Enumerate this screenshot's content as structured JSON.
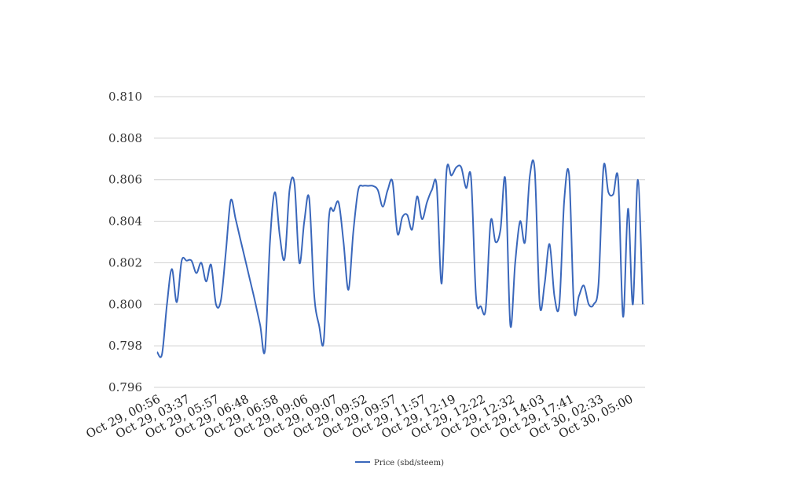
{
  "chart_data": {
    "type": "line",
    "title": "",
    "xlabel": "",
    "ylabel": "",
    "ylim": [
      0.796,
      0.81
    ],
    "yticks": [
      "0.796",
      "0.798",
      "0.800",
      "0.802",
      "0.804",
      "0.806",
      "0.808",
      "0.810"
    ],
    "xtick_labels": [
      "Oct 29, 00:56",
      "Oct 29, 03:37",
      "Oct 29, 05:57",
      "Oct 29, 06:48",
      "Oct 29, 06:58",
      "Oct 29, 09:06",
      "Oct 29, 09:07",
      "Oct 29, 09:52",
      "Oct 29, 09:57",
      "Oct 29, 11:57",
      "Oct 29, 12:19",
      "Oct 29, 12:22",
      "Oct 29, 12:32",
      "Oct 29, 14:03",
      "Oct 29, 17:41",
      "Oct 30, 02:33",
      "Oct 30, 05:00"
    ],
    "grid": true,
    "legend_position": "bottom-center",
    "series": [
      {
        "name": "Price (sbd/steem)",
        "color": "#3a67bb",
        "values": [
          0.7977,
          0.7976,
          0.8,
          0.8017,
          0.8001,
          0.8021,
          0.8021,
          0.8021,
          0.8015,
          0.802,
          0.8011,
          0.8019,
          0.8,
          0.8002,
          0.8025,
          0.805,
          0.8041,
          0.8031,
          0.8021,
          0.8011,
          0.8001,
          0.799,
          0.7978,
          0.803,
          0.8054,
          0.8033,
          0.8022,
          0.8055,
          0.8058,
          0.802,
          0.804,
          0.8051,
          0.8005,
          0.799,
          0.7983,
          0.8041,
          0.8045,
          0.8049,
          0.803,
          0.8007,
          0.8035,
          0.8055,
          0.8057,
          0.8057,
          0.8057,
          0.8055,
          0.8047,
          0.8055,
          0.8059,
          0.8034,
          0.8042,
          0.8043,
          0.8036,
          0.8052,
          0.8041,
          0.8049,
          0.8055,
          0.8057,
          0.801,
          0.8064,
          0.8062,
          0.8066,
          0.8066,
          0.8056,
          0.8061,
          0.8004,
          0.7999,
          0.7998,
          0.804,
          0.803,
          0.8036,
          0.806,
          0.799,
          0.802,
          0.804,
          0.803,
          0.8062,
          0.8064,
          0.8,
          0.801,
          0.8029,
          0.8004,
          0.8,
          0.805,
          0.8062,
          0.7998,
          0.8004,
          0.8009,
          0.8,
          0.8,
          0.801,
          0.8066,
          0.8054,
          0.8053,
          0.806,
          0.7994,
          0.8046,
          0.8,
          0.806,
          0.8
        ]
      }
    ]
  }
}
